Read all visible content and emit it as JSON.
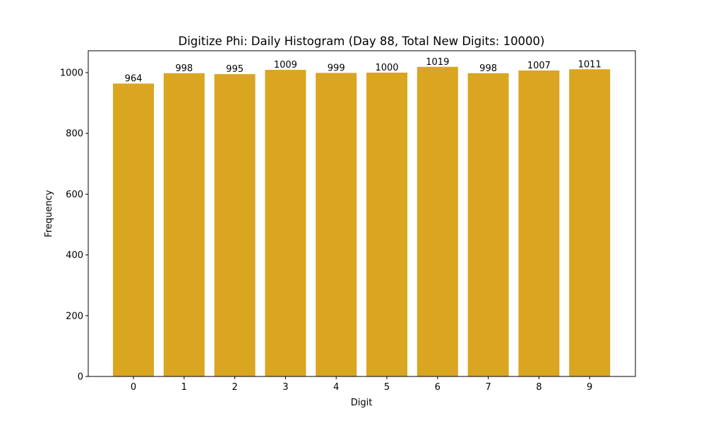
{
  "chart_data": {
    "type": "bar",
    "title": "Digitize Phi: Daily Histogram (Day 88, Total New Digits: 10000)",
    "xlabel": "Digit",
    "ylabel": "Frequency",
    "categories": [
      "0",
      "1",
      "2",
      "3",
      "4",
      "5",
      "6",
      "7",
      "8",
      "9"
    ],
    "values": [
      964,
      998,
      995,
      1009,
      999,
      1000,
      1019,
      998,
      1007,
      1011
    ],
    "data_labels": [
      "964",
      "998",
      "995",
      "1009",
      "999",
      "1000",
      "1019",
      "998",
      "1007",
      "1011"
    ],
    "ylim": [
      0,
      1070
    ],
    "yticks": [
      0,
      200,
      400,
      600,
      800,
      1000
    ],
    "grid": false,
    "legend": null,
    "bar_color": "#DAA520"
  }
}
